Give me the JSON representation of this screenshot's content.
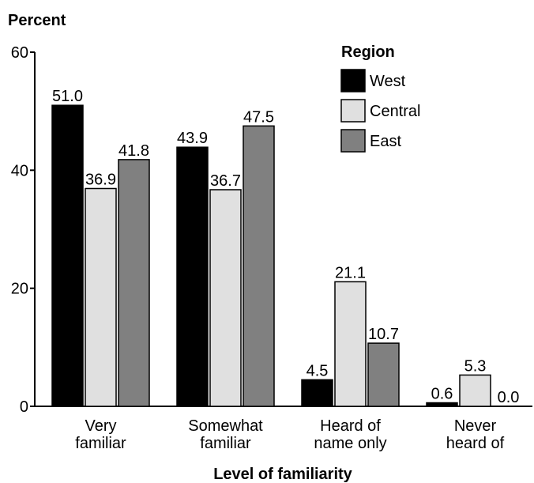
{
  "chart_data": {
    "type": "bar",
    "title": "",
    "ylabel": "Percent",
    "xlabel": "Level of familiarity",
    "ylim": [
      0,
      60
    ],
    "yticks": [
      0,
      20,
      40,
      60
    ],
    "categories": [
      [
        "Very",
        "familiar"
      ],
      [
        "Somewhat",
        "familiar"
      ],
      [
        "Heard of",
        "name only"
      ],
      [
        "Never",
        "heard of"
      ]
    ],
    "legend_title": "Region",
    "legend_position": "top-right",
    "series": [
      {
        "name": "West",
        "color": "#000000",
        "values": [
          51.0,
          43.9,
          4.5,
          0.6
        ],
        "labels": [
          "51.0",
          "43.9",
          "4.5",
          "0.6"
        ]
      },
      {
        "name": "Central",
        "color": "#e0e0e0",
        "values": [
          36.9,
          36.7,
          21.1,
          5.3
        ],
        "labels": [
          "36.9",
          "36.7",
          "21.1",
          "5.3"
        ]
      },
      {
        "name": "East",
        "color": "#808080",
        "values": [
          41.8,
          47.5,
          10.7,
          0.0
        ],
        "labels": [
          "41.8",
          "47.5",
          "10.7",
          "0.0"
        ]
      }
    ]
  }
}
